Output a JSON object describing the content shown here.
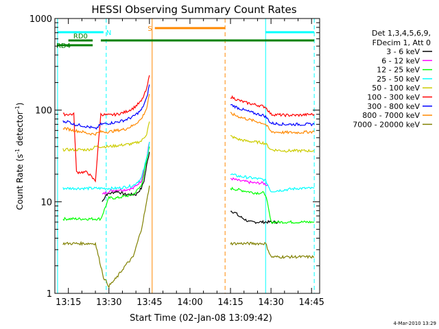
{
  "chart_data": {
    "type": "line",
    "title": "HESSI Observing Summary Count Rates",
    "xlabel": "Start Time (02-Jan-08 13:09:42)",
    "ylabel": "Count Rate (s⁻¹ detector⁻¹)",
    "ylabel_main": "Count Rate (s",
    "ylabel_mid": " detector",
    "ylabel_end": ")",
    "ylabel_sup": "-1",
    "yscale": "log",
    "ylim": [
      1,
      1000
    ],
    "xlim_minutes": [
      13.167,
      14.8
    ],
    "x_ticks": [
      "13:15",
      "13:30",
      "13:45",
      "14:00",
      "14:15",
      "14:30",
      "14:45"
    ],
    "y_ticks": [
      "1",
      "10",
      "100",
      "1000"
    ],
    "legend_position": "right",
    "legend_header": [
      "Det 1,3,4,5,6,9,",
      "FDecim 1, Att 0"
    ],
    "series": [
      {
        "name": "3 - 6 keV",
        "color": "#000000",
        "seg1": {
          "x": [
            "13:27:30",
            "13:29",
            "13:33",
            "13:36",
            "13:38",
            "13:40",
            "13:42",
            "13:43",
            "13:44",
            "13:45"
          ],
          "y": [
            10,
            12,
            13,
            12,
            12,
            12,
            14,
            17,
            25,
            35
          ]
        },
        "seg2": {
          "x": [
            "14:15",
            "14:17",
            "14:18",
            "14:20",
            "14:22",
            "14:24",
            "14:26",
            "14:30",
            "14:31",
            "14:33"
          ],
          "y": [
            8,
            7.5,
            7,
            6.5,
            6,
            6,
            6,
            6,
            6,
            6
          ]
        }
      },
      {
        "name": "6 - 12 keV",
        "color": "#ff00ff",
        "seg1": {
          "x": [
            "13:27:30",
            "13:30",
            "13:33",
            "13:36",
            "13:39",
            "13:42",
            "13:44",
            "13:45"
          ],
          "y": [
            12,
            13,
            13.5,
            13.5,
            14,
            17,
            30,
            45
          ]
        },
        "seg2": {
          "x": [
            "14:15",
            "14:18",
            "14:21",
            "14:24",
            "14:27",
            "14:28",
            "14:29"
          ],
          "y": [
            18,
            17,
            16.5,
            16,
            16,
            15.5,
            15
          ]
        }
      },
      {
        "name": "12 - 25 keV",
        "color": "#00ff00",
        "seg1": {
          "x": [
            "13:13",
            "13:15",
            "13:17",
            "13:20",
            "13:22",
            "13:24",
            "13:25",
            "13:27",
            "13:30",
            "13:33",
            "13:36",
            "13:39",
            "13:42",
            "13:44",
            "13:45"
          ],
          "y": [
            6.5,
            6.5,
            6.5,
            6.5,
            6.5,
            6.5,
            6.5,
            6.5,
            11,
            11,
            11.5,
            12,
            15,
            28,
            40
          ]
        },
        "seg2": {
          "x": [
            "14:15",
            "14:18",
            "14:21",
            "14:24",
            "14:27",
            "14:28",
            "14:30",
            "14:35",
            "14:40",
            "14:45",
            "14:46"
          ],
          "y": [
            14,
            13.5,
            13,
            12.5,
            12.5,
            12,
            6,
            6,
            6,
            6,
            6
          ]
        }
      },
      {
        "name": "25 - 50 keV",
        "color": "#00ffff",
        "seg1": {
          "x": [
            "13:13",
            "13:15",
            "13:17",
            "13:20",
            "13:22",
            "13:24",
            "13:25",
            "13:27",
            "13:30",
            "13:33",
            "13:36",
            "13:39",
            "13:42",
            "13:44",
            "13:45"
          ],
          "y": [
            14,
            14,
            14,
            14,
            14,
            14,
            14,
            14,
            14,
            14,
            14.5,
            15,
            18,
            30,
            45
          ]
        },
        "seg2": {
          "x": [
            "14:15",
            "14:18",
            "14:21",
            "14:24",
            "14:27",
            "14:28",
            "14:30",
            "14:35",
            "14:40",
            "14:45",
            "14:46"
          ],
          "y": [
            20,
            19,
            18.5,
            18,
            17.5,
            17,
            13,
            13.5,
            14,
            14,
            14
          ]
        }
      },
      {
        "name": "50 - 100 keV",
        "color": "#cccc00",
        "seg1": {
          "x": [
            "13:13",
            "13:15",
            "13:17",
            "13:20",
            "13:22",
            "13:24",
            "13:25",
            "13:27",
            "13:30",
            "13:33",
            "13:36",
            "13:39",
            "13:42",
            "13:44",
            "13:45"
          ],
          "y": [
            37,
            37,
            37,
            37,
            37,
            38,
            40,
            40,
            40,
            41,
            42,
            43,
            46,
            55,
            75
          ]
        },
        "seg2": {
          "x": [
            "14:15",
            "14:18",
            "14:21",
            "14:24",
            "14:27",
            "14:28",
            "14:30",
            "14:35",
            "14:40",
            "14:45",
            "14:46"
          ],
          "y": [
            52,
            48,
            46,
            45,
            44,
            43,
            37,
            36,
            36,
            36,
            36
          ]
        }
      },
      {
        "name": "100 - 300 keV",
        "color": "#ff0000",
        "seg1": {
          "x": [
            "13:13",
            "13:15",
            "13:17",
            "13:18",
            "13:20",
            "13:22",
            "13:24",
            "13:25",
            "13:27",
            "13:30",
            "13:33",
            "13:36",
            "13:39",
            "13:42",
            "13:44",
            "13:45"
          ],
          "y": [
            90,
            90,
            90,
            21,
            21,
            21,
            18,
            17,
            90,
            88,
            90,
            95,
            105,
            125,
            170,
            240
          ]
        },
        "seg2": {
          "x": [
            "14:15",
            "14:18",
            "14:21",
            "14:24",
            "14:27",
            "14:28",
            "14:30",
            "14:35",
            "14:40",
            "14:45",
            "14:46"
          ],
          "y": [
            140,
            128,
            120,
            115,
            110,
            108,
            90,
            88,
            88,
            90,
            90
          ]
        }
      },
      {
        "name": "300 - 800 keV",
        "color": "#0000ff",
        "seg1": {
          "x": [
            "13:13",
            "13:15",
            "13:17",
            "13:20",
            "13:22",
            "13:24",
            "13:25",
            "13:27",
            "13:30",
            "13:33",
            "13:36",
            "13:39",
            "13:42",
            "13:44",
            "13:45"
          ],
          "y": [
            75,
            75,
            70,
            68,
            66,
            64,
            62,
            70,
            72,
            74,
            78,
            85,
            100,
            135,
            190
          ]
        },
        "seg2": {
          "x": [
            "14:15",
            "14:18",
            "14:21",
            "14:24",
            "14:27",
            "14:28",
            "14:30",
            "14:35",
            "14:40",
            "14:45",
            "14:46"
          ],
          "y": [
            115,
            105,
            98,
            92,
            88,
            85,
            72,
            70,
            70,
            70,
            70
          ]
        }
      },
      {
        "name": "800 - 7000 keV",
        "color": "#ff8800",
        "seg1": {
          "x": [
            "13:13",
            "13:15",
            "13:17",
            "13:20",
            "13:22",
            "13:24",
            "13:25",
            "13:27",
            "13:30",
            "13:33",
            "13:36",
            "13:39",
            "13:42",
            "13:44",
            "13:45"
          ],
          "y": [
            64,
            62,
            60,
            58,
            56,
            55,
            55,
            58,
            58,
            60,
            62,
            68,
            80,
            105,
            150
          ]
        },
        "seg2": {
          "x": [
            "14:15",
            "14:18",
            "14:21",
            "14:24",
            "14:27",
            "14:28",
            "14:30",
            "14:35",
            "14:40",
            "14:45",
            "14:46"
          ],
          "y": [
            92,
            85,
            80,
            76,
            72,
            70,
            58,
            57,
            57,
            58,
            58
          ]
        }
      },
      {
        "name": "7000 - 20000 keV",
        "color": "#808000",
        "seg1": {
          "x": [
            "13:13",
            "13:15",
            "13:17",
            "13:20",
            "13:22",
            "13:24",
            "13:25",
            "13:27",
            "13:28",
            "13:30",
            "13:33",
            "13:36",
            "13:39",
            "13:42",
            "13:44",
            "13:45"
          ],
          "y": [
            3.5,
            3.5,
            3.5,
            3.5,
            3.5,
            3.5,
            3.5,
            2,
            1.5,
            1.2,
            1.5,
            2,
            2.5,
            5,
            10,
            15
          ]
        },
        "seg2": {
          "x": [
            "14:15",
            "14:18",
            "14:21",
            "14:24",
            "14:27",
            "14:28",
            "14:30",
            "14:35",
            "14:40",
            "14:45",
            "14:46"
          ],
          "y": [
            3.5,
            3.5,
            3.5,
            3.5,
            3.5,
            3.5,
            2.5,
            2.5,
            2.5,
            2.5,
            2.5
          ]
        }
      }
    ],
    "flag_bars": [
      {
        "label": "N",
        "color": "#00ffff",
        "start": "13:11",
        "end": "13:28"
      },
      {
        "label": "",
        "color": "#00ffff",
        "start": "14:28",
        "end": "14:46"
      },
      {
        "label": "S",
        "color": "#ff8800",
        "start": "13:47",
        "end": "14:13"
      },
      {
        "label": "RD0",
        "color": "#008000",
        "start": "13:15",
        "end": "13:24"
      },
      {
        "label": "RD4",
        "color": "#008000",
        "start": "13:11",
        "end": "13:24"
      },
      {
        "label": "",
        "color": "#008000",
        "start": "13:27",
        "end": "14:46"
      }
    ],
    "vertical_lines": [
      {
        "color": "#00ffff",
        "style": "solid",
        "x": "13:11"
      },
      {
        "color": "#00ffff",
        "style": "dashed",
        "x": "13:29"
      },
      {
        "color": "#ff8800",
        "style": "solid",
        "x": "13:46"
      },
      {
        "color": "#ff8800",
        "style": "dashed",
        "x": "14:13"
      },
      {
        "color": "#00ffff",
        "style": "solid",
        "x": "14:28"
      },
      {
        "color": "#00ffff",
        "style": "dashed",
        "x": "14:46"
      }
    ]
  },
  "footer": {
    "date_stamp": "4-Mar-2010 13:29"
  }
}
